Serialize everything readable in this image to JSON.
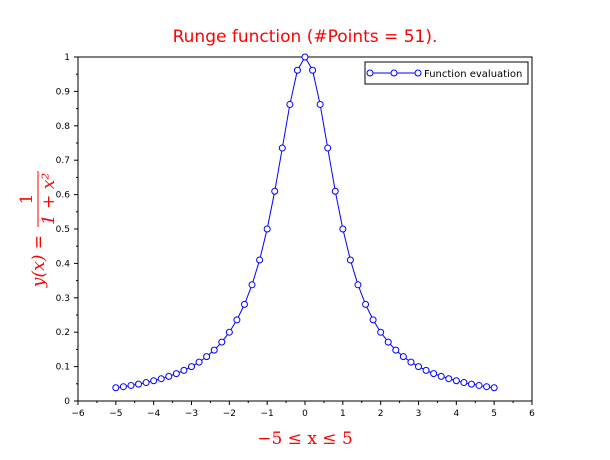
{
  "chart_data": {
    "type": "line",
    "title": "Runge function (#Points = 51).",
    "xlabel": "−5 ≤ x ≤ 5",
    "ylabel": {
      "lhs": "y(x) =",
      "numerator": "1",
      "denominator": "1 + x²"
    },
    "xlim": [
      -6,
      6
    ],
    "ylim": [
      0,
      1
    ],
    "x_ticks": [
      "−6",
      "−5",
      "−4",
      "−3",
      "−2",
      "−1",
      "0",
      "1",
      "2",
      "3",
      "4",
      "5",
      "6"
    ],
    "y_ticks": [
      "0",
      "0.1",
      "0.2",
      "0.3",
      "0.4",
      "0.5",
      "0.6",
      "0.7",
      "0.8",
      "0.9",
      "1"
    ],
    "grid": false,
    "legend_position": "top-right",
    "series": [
      {
        "name": "Function evaluation",
        "color": "#0000ff",
        "marker": "circle",
        "x": [
          -5,
          -4.8,
          -4.6,
          -4.4,
          -4.2,
          -4,
          -3.8,
          -3.6,
          -3.4,
          -3.2,
          -3,
          -2.8,
          -2.6,
          -2.4,
          -2.2,
          -2,
          -1.8,
          -1.6,
          -1.4,
          -1.2,
          -1,
          -0.8,
          -0.6,
          -0.4,
          -0.2,
          0,
          0.2,
          0.4,
          0.6,
          0.8,
          1,
          1.2,
          1.4,
          1.6,
          1.8,
          2,
          2.2,
          2.4,
          2.6,
          2.8,
          3,
          3.2,
          3.4,
          3.6,
          3.8,
          4,
          4.2,
          4.4,
          4.6,
          4.8,
          5
        ],
        "y": [
          0.0385,
          0.0416,
          0.0452,
          0.0491,
          0.0536,
          0.0588,
          0.0648,
          0.0716,
          0.0796,
          0.089,
          0.1,
          0.1131,
          0.1289,
          0.1479,
          0.1712,
          0.2,
          0.2358,
          0.2809,
          0.3378,
          0.4098,
          0.5,
          0.6098,
          0.7353,
          0.8621,
          0.9615,
          1,
          0.9615,
          0.8621,
          0.7353,
          0.6098,
          0.5,
          0.4098,
          0.3378,
          0.2809,
          0.2358,
          0.2,
          0.1712,
          0.1479,
          0.1289,
          0.1131,
          0.1,
          0.089,
          0.0796,
          0.0716,
          0.0648,
          0.0588,
          0.0536,
          0.0491,
          0.0452,
          0.0416,
          0.0385
        ]
      }
    ]
  }
}
